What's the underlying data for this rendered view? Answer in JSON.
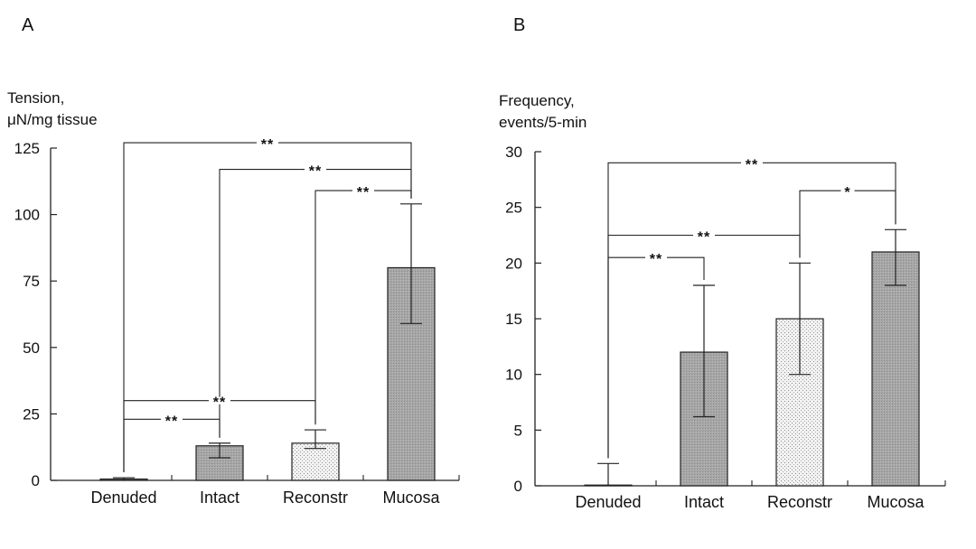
{
  "chart_data": [
    {
      "type": "bar",
      "panel_label": "A",
      "ylabel_line1": "Tension,",
      "ylabel_line2": "μN/mg tissue",
      "categories": [
        "Denuded",
        "Intact",
        "Reconstr",
        "Mucosa"
      ],
      "values": [
        0.5,
        13,
        14,
        80
      ],
      "error_upper": [
        1,
        14,
        19,
        104
      ],
      "error_lower": [
        0,
        8.5,
        12,
        59
      ],
      "bar_styles": [
        "gray",
        "gray",
        "dotted",
        "gray"
      ],
      "ylim": [
        0,
        125
      ],
      "yticks": [
        0,
        25,
        50,
        75,
        100,
        125
      ],
      "significance": [
        {
          "from": 0,
          "to": 3,
          "label": "**",
          "level": 127
        },
        {
          "from": 1,
          "to": 3,
          "label": "**",
          "level": 117
        },
        {
          "from": 2,
          "to": 3,
          "label": "**",
          "level": 109
        },
        {
          "from": 0,
          "to": 2,
          "label": "**",
          "level": 30
        },
        {
          "from": 0,
          "to": 1,
          "label": "**",
          "level": 23
        }
      ]
    },
    {
      "type": "bar",
      "panel_label": "B",
      "ylabel_line1": "Frequency,",
      "ylabel_line2": "events/5-min",
      "categories": [
        "Denuded",
        "Intact",
        "Reconstr",
        "Mucosa"
      ],
      "values": [
        0,
        12,
        15,
        21
      ],
      "error_upper": [
        2,
        18,
        20,
        23
      ],
      "error_lower": [
        0,
        6.2,
        10,
        18
      ],
      "bar_styles": [
        "gray",
        "gray",
        "dotted",
        "gray"
      ],
      "ylim": [
        0,
        30
      ],
      "yticks": [
        0,
        5,
        10,
        15,
        20,
        25,
        30
      ],
      "significance": [
        {
          "from": 0,
          "to": 3,
          "label": "**",
          "level": 29
        },
        {
          "from": 2,
          "to": 3,
          "label": "*",
          "level": 26.5
        },
        {
          "from": 0,
          "to": 2,
          "label": "**",
          "level": 22.5
        },
        {
          "from": 0,
          "to": 1,
          "label": "**",
          "level": 20.5
        }
      ]
    }
  ]
}
